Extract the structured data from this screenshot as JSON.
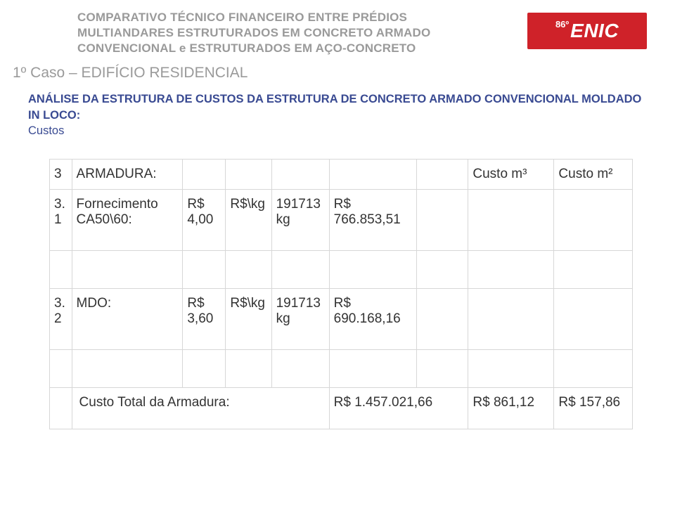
{
  "header": {
    "title_line1": "COMPARATIVO TÉCNICO FINANCEIRO ENTRE PRÉDIOS",
    "title_line2": "MULTIANDARES ESTRUTURADOS EM CONCRETO ARMADO",
    "title_line3": "CONVENCIONAL e ESTRUTURADOS EM AÇO-CONCRETO",
    "logo_sup": "86º",
    "logo_main": "ENIC",
    "logo_bg": "#cf2229",
    "subtitle": "1º Caso – EDIFÍCIO RESIDENCIAL"
  },
  "section": {
    "heading_a": "ANÁLISE DA ESTRUTURA DE CUSTOS DA ESTRUTURA DE ",
    "heading_b": "CONCRETO ARMADO CONVENCIONAL MOLDADO IN LOCO:",
    "sub": "Custos"
  },
  "table": {
    "row_head": {
      "idx": "3",
      "desc": "ARMADURA:",
      "cm3_label": "Custo m³",
      "cm2_label": "Custo m²"
    },
    "row1": {
      "idx": "3.1",
      "desc_a": "Fornecimento",
      "desc_b": "CA50\\60:",
      "pu": "R$ 4,00",
      "unit": "R$\\kg",
      "qty": "191713 kg",
      "val": "R$ 766.853,51"
    },
    "row2": {
      "idx": "3.2",
      "desc": "MDO:",
      "pu": "R$ 3,60",
      "unit": "R$\\kg",
      "qty": "191713 kg",
      "val": "R$ 690.168,16"
    },
    "total": {
      "label": "Custo Total da Armadura:",
      "val": "R$ 1.457.021,66",
      "cm3": "R$ 861,12",
      "cm2": "R$ 157,86"
    }
  },
  "colors": {
    "title_gray": "#9a9a9a",
    "heading_blue": "#394a92",
    "border": "#d7d7d7",
    "text": "#333333"
  }
}
